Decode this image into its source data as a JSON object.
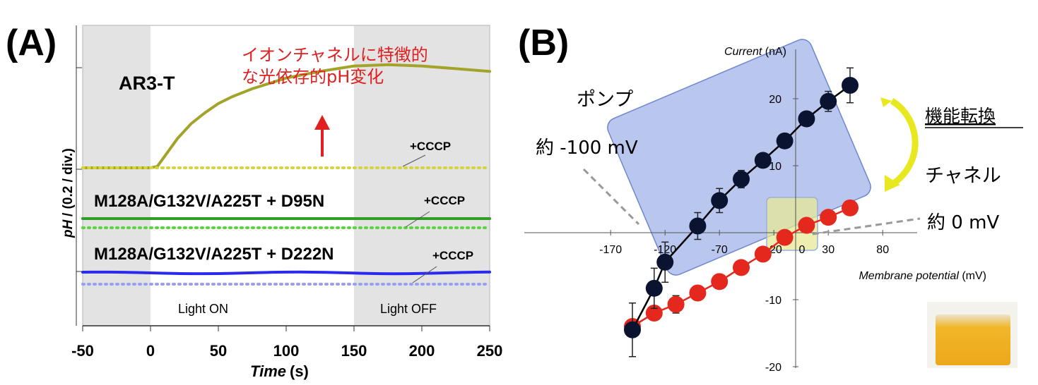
{
  "panel_labels": {
    "a": "(A)",
    "b": "(B)"
  },
  "colors": {
    "ar3": "#a3a32a",
    "ar3_cccp": "#d4d43c",
    "d95n": "#2e9e24",
    "d95n_cccp": "#5ad63c",
    "d222n": "#2a2aee",
    "d222n_cccp": "#9aa0ee",
    "annotation_red": "#e02020",
    "pump": "#0a1430",
    "channel": "#e5281e",
    "shade": "#e3e3e3"
  },
  "chart_data": [
    {
      "type": "line",
      "panel": "A",
      "xlabel_italic": "Time",
      "xlabel_unit": "(s)",
      "ylabel_italic": "pH",
      "ylabel_unit": "/ (0.2 / div.)",
      "xlim": [
        -50,
        250
      ],
      "xticks": [
        "-50",
        "0",
        "50",
        "100",
        "150",
        "200",
        "250"
      ],
      "shaded_regions": [
        [
          -50,
          0
        ],
        [
          150,
          250
        ]
      ],
      "region_labels": {
        "on": "Light ON",
        "off": "Light OFF"
      },
      "sample_labels": {
        "ar3": "AR3-T",
        "d95n": "M128A/G132V/A225T + D95N",
        "d222n": "M128A/G132V/A225T + D222N"
      },
      "cccp_label": "+CCCP",
      "annotation": {
        "line1": "イオンチャネルに特徴的",
        "line2": "な光依存的pH変化"
      },
      "series": [
        {
          "key": "ar3",
          "x": [
            -50,
            0,
            5,
            10,
            20,
            30,
            40,
            50,
            60,
            75,
            100,
            125,
            150,
            175,
            200,
            225,
            250
          ],
          "y": [
            0,
            0,
            0.01,
            0.08,
            0.22,
            0.33,
            0.41,
            0.48,
            0.53,
            0.59,
            0.67,
            0.72,
            0.76,
            0.77,
            0.76,
            0.74,
            0.72
          ]
        },
        {
          "key": "ar3_cccp",
          "x": [
            -50,
            250
          ],
          "y": [
            0,
            0
          ]
        },
        {
          "key": "d95n",
          "x": [
            -50,
            250
          ],
          "y": [
            0,
            0
          ]
        },
        {
          "key": "d95n_cccp",
          "x": [
            -50,
            250
          ],
          "y": [
            0,
            0
          ]
        },
        {
          "key": "d222n",
          "x": [
            -50,
            250
          ],
          "y": [
            0,
            0
          ]
        },
        {
          "key": "d222n_cccp",
          "x": [
            -50,
            250
          ],
          "y": [
            0,
            0
          ]
        }
      ]
    },
    {
      "type": "scatter",
      "panel": "B",
      "xlabel_italic": "Membrane potential",
      "xlabel_unit": "(mV)",
      "ylabel_italic": "Current",
      "ylabel_unit": "(nA)",
      "xlim": [
        -170,
        80
      ],
      "ylim": [
        -20,
        27
      ],
      "xticks": [
        "-170",
        "-120",
        "-70",
        "-20",
        "30",
        "80"
      ],
      "xtick_values": [
        -170,
        -120,
        -70,
        -20,
        30,
        80
      ],
      "yticks": [
        "-20",
        "-10",
        "10",
        "20"
      ],
      "ytick_values": [
        -20,
        -10,
        10,
        20
      ],
      "extra_xtick": {
        "label": "0",
        "value": 0
      },
      "series": [
        {
          "key": "pump",
          "x": [
            -150,
            -130,
            -120,
            -90,
            -70,
            -50,
            -30,
            -10,
            10,
            30,
            50
          ],
          "y": [
            -14.5,
            -8.3,
            -4.4,
            1.0,
            4.8,
            8.0,
            10.8,
            13.7,
            17.0,
            19.6,
            22.0
          ],
          "err": [
            4.0,
            3.0,
            3.0,
            2.0,
            1.8,
            1.3,
            1.0,
            1.0,
            0.8,
            1.5,
            2.6
          ]
        },
        {
          "key": "channel",
          "x": [
            -150,
            -130,
            -110,
            -90,
            -70,
            -50,
            -30,
            -10,
            10,
            30,
            50
          ],
          "y": [
            -14.0,
            -12.0,
            -10.7,
            -9.0,
            -7.3,
            -5.2,
            -3.2,
            -0.7,
            1.1,
            2.3,
            3.7
          ],
          "err": [
            1.0,
            0.8,
            1.3,
            0.7,
            0.6,
            0.5,
            0.6,
            0.5,
            0.5,
            0.5,
            0.5
          ]
        }
      ],
      "annotations": {
        "pump_label": "ポンプ",
        "pump_value": "約 -100 mV",
        "channel_label": "チャネル",
        "channel_value": "約 0 mV",
        "conversion": "機能転換"
      }
    }
  ]
}
